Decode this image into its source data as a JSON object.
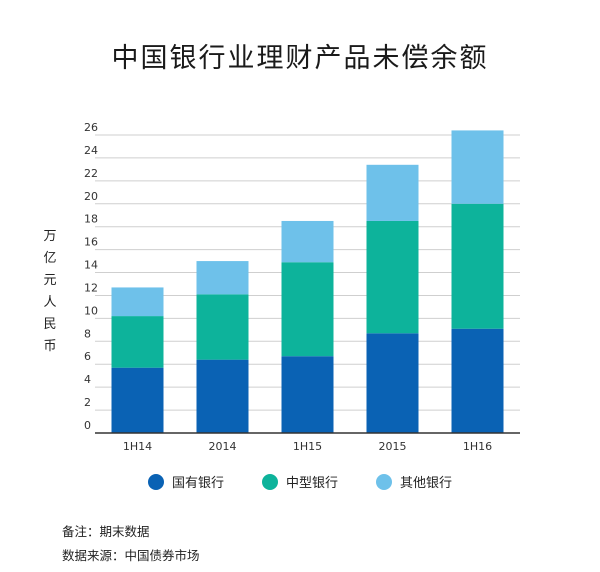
{
  "chart_data": {
    "type": "bar",
    "stacked": true,
    "title": "中国银行业理财产品未偿余额",
    "ylabel": "万亿元人民币",
    "ylim": [
      0,
      26
    ],
    "yticks": [
      0,
      2,
      4,
      6,
      8,
      10,
      12,
      14,
      16,
      18,
      20,
      22,
      24,
      26
    ],
    "categories": [
      "1H14",
      "2014",
      "1H15",
      "2015",
      "1H16"
    ],
    "series": [
      {
        "name": "国有银行",
        "color": "#0a62b4",
        "values": [
          5.7,
          6.4,
          6.7,
          8.7,
          9.1
        ]
      },
      {
        "name": "中型银行",
        "color": "#0db39b",
        "values": [
          4.5,
          5.7,
          8.2,
          9.8,
          10.9
        ]
      },
      {
        "name": "其他银行",
        "color": "#6ec1ea",
        "values": [
          2.5,
          2.9,
          3.6,
          4.9,
          6.4
        ]
      }
    ],
    "grid": true,
    "legend_position": "bottom"
  },
  "notes": {
    "note": "备注：期末数据",
    "source": "数据来源：中国债券市场"
  }
}
